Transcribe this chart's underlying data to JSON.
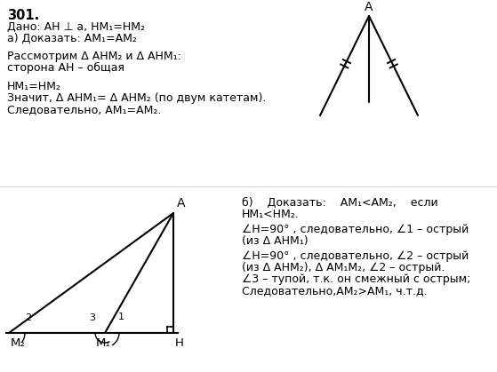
{
  "bg_color": "#ffffff",
  "text_color": "#000000",
  "fig_width": 5.59,
  "fig_height": 4.19,
  "dpi": 100,
  "left_text_lines": [
    [
      "301.",
      true
    ],
    [
      "Дано: AH ⊥ a, HM₁=HM₂",
      false
    ],
    [
      "а) Доказать: AM₁=AM₂",
      false
    ],
    [
      "",
      false
    ],
    [
      "Рассмотрим Δ AHM₂ и Δ AHM₁:",
      false
    ],
    [
      "сторона AH – общая",
      false
    ],
    [
      "",
      false
    ],
    [
      "HM₁=HM₂",
      false
    ],
    [
      "Значит, Δ AHM₁= Δ AHM₂ (по двум катетам).",
      false
    ],
    [
      "Следовательно, AM₁=AM₂.",
      false
    ]
  ],
  "right_text_lines": [
    "б)    Доказать:    AM₁<AM₂,    если",
    "HM₁<HM₂.",
    "",
    "∠H=90° , следовательно, ∠1 – острый",
    "(из Δ AHM₁)",
    "",
    "∠H=90° , следовательно, ∠2 – острый",
    "(из Δ AHM₂), Δ AM₁M₂, ∠2 – острый.",
    "∠3 – тупой, т.к. он смежный с острым;",
    "Следовательно,AM₂>AM₁, ч.т.д."
  ]
}
